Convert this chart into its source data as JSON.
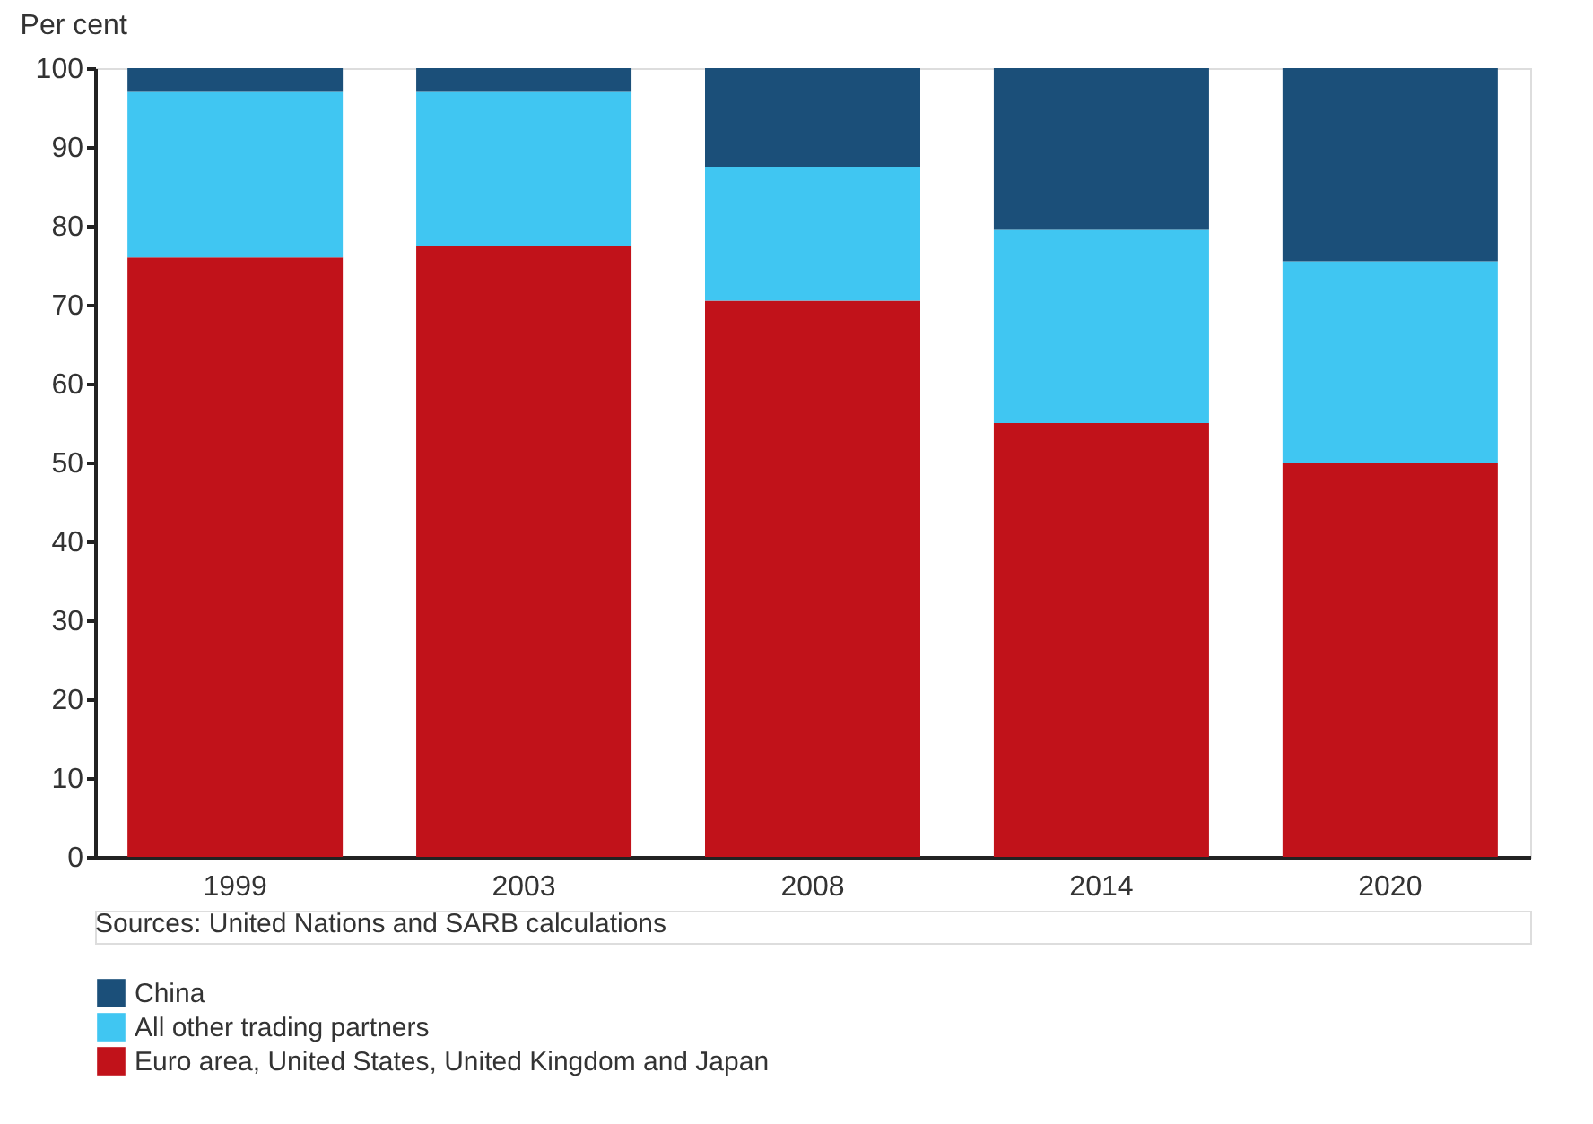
{
  "chart_data": {
    "type": "bar",
    "stacked": true,
    "ylabel": "Per cent",
    "categories": [
      "1999",
      "2003",
      "2008",
      "2014",
      "2020"
    ],
    "series": [
      {
        "name": "Euro area, United States, United Kingdom and Japan",
        "color": "#c1121a",
        "values": [
          76,
          77.5,
          70.5,
          55,
          50
        ]
      },
      {
        "name": "All other trading partners",
        "color": "#40c6f2",
        "values": [
          21,
          19.5,
          17,
          24.5,
          25.5
        ]
      },
      {
        "name": "China",
        "color": "#1b4f79",
        "values": [
          3,
          3,
          12.5,
          20.5,
          24.5
        ]
      }
    ],
    "ylim": [
      0,
      100
    ],
    "yticks": [
      0,
      10,
      20,
      30,
      40,
      50,
      60,
      70,
      80,
      90,
      100
    ],
    "grid": false,
    "legend": "bottom",
    "annotations": [
      "Sources: United Nations and SARB calculations"
    ]
  }
}
